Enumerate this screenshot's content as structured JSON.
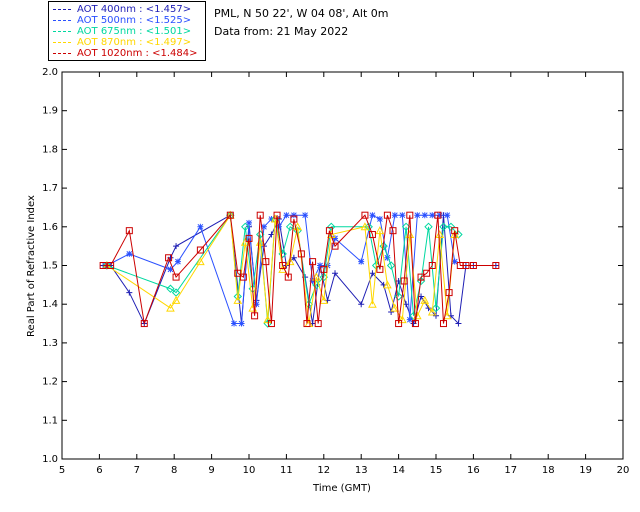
{
  "header": {
    "site": "PML, N 50 22', W 04 08', Alt 0m",
    "date": "Data from: 21 May 2022"
  },
  "legend": [
    {
      "label": "AOT  400nm : <1.457>",
      "color": "#1e1eb4"
    },
    {
      "label": "AOT  500nm : <1.525>",
      "color": "#2a50ff"
    },
    {
      "label": "AOT  675nm : <1.501>",
      "color": "#00d8a0"
    },
    {
      "label": "AOT  870nm : <1.497>",
      "color": "#ffd700"
    },
    {
      "label": "AOT 1020nm : <1.484>",
      "color": "#cc0000"
    }
  ],
  "chart_data": {
    "type": "line",
    "xlabel": "Time (GMT)",
    "ylabel": "Real Part of Refractive Index",
    "xlim": [
      5,
      20
    ],
    "ylim": [
      1.0,
      2.0
    ],
    "xticks": [
      "5",
      "6",
      "7",
      "8",
      "9",
      "10",
      "11",
      "12",
      "13",
      "14",
      "15",
      "16",
      "17",
      "18",
      "19",
      "20"
    ],
    "yticks": [
      "1.0",
      "1.1",
      "1.2",
      "1.3",
      "1.4",
      "1.5",
      "1.6",
      "1.7",
      "1.8",
      "1.9",
      "2.0"
    ],
    "series": [
      {
        "name": "AOT  400nm",
        "marker": "plus",
        "color": "#1e1eb4",
        "x": [
          6.1,
          6.3,
          6.8,
          7.2,
          7.9,
          8.05,
          9.5,
          9.8,
          10.0,
          10.2,
          10.4,
          10.6,
          10.8,
          11.0,
          11.2,
          11.5,
          11.7,
          11.9,
          12.1,
          12.3,
          13.0,
          13.3,
          13.6,
          13.8,
          14.0,
          14.2,
          14.4,
          14.6,
          14.8,
          15.0,
          15.2,
          15.4,
          15.6,
          15.8,
          16.0,
          16.6
        ],
        "y": [
          1.5,
          1.5,
          1.43,
          1.35,
          1.52,
          1.55,
          1.63,
          1.35,
          1.6,
          1.41,
          1.55,
          1.58,
          1.62,
          1.5,
          1.52,
          1.47,
          1.35,
          1.5,
          1.41,
          1.48,
          1.4,
          1.48,
          1.45,
          1.38,
          1.46,
          1.4,
          1.35,
          1.42,
          1.39,
          1.37,
          1.63,
          1.37,
          1.35,
          1.5,
          1.5,
          1.5
        ]
      },
      {
        "name": "AOT  500nm",
        "marker": "star",
        "color": "#2a50ff",
        "x": [
          6.2,
          6.8,
          7.9,
          8.1,
          8.7,
          9.6,
          9.8,
          10.0,
          10.2,
          10.4,
          10.6,
          10.8,
          11.0,
          11.2,
          11.5,
          11.7,
          11.9,
          12.1,
          12.3,
          13.0,
          13.3,
          13.5,
          13.7,
          13.9,
          14.1,
          14.3,
          14.5,
          14.7,
          14.9,
          15.1,
          15.3,
          15.5
        ],
        "y": [
          1.5,
          1.53,
          1.49,
          1.51,
          1.6,
          1.35,
          1.35,
          1.61,
          1.4,
          1.6,
          1.62,
          1.6,
          1.63,
          1.63,
          1.63,
          1.46,
          1.5,
          1.5,
          1.57,
          1.51,
          1.63,
          1.62,
          1.52,
          1.63,
          1.63,
          1.36,
          1.63,
          1.63,
          1.63,
          1.63,
          1.63,
          1.51
        ]
      },
      {
        "name": "AOT  675nm",
        "marker": "diamond",
        "color": "#00d8a0",
        "x": [
          6.2,
          7.9,
          8.05,
          9.5,
          9.7,
          9.9,
          10.1,
          10.3,
          10.5,
          10.7,
          10.9,
          11.1,
          11.3,
          11.6,
          11.8,
          12.0,
          12.2,
          13.2,
          13.4,
          13.6,
          13.8,
          14.0,
          14.2,
          14.4,
          14.6,
          14.8,
          15.0,
          15.2,
          15.4,
          15.6
        ],
        "y": [
          1.5,
          1.44,
          1.43,
          1.63,
          1.42,
          1.6,
          1.44,
          1.58,
          1.35,
          1.62,
          1.53,
          1.6,
          1.59,
          1.4,
          1.45,
          1.47,
          1.6,
          1.6,
          1.5,
          1.55,
          1.5,
          1.42,
          1.6,
          1.37,
          1.46,
          1.6,
          1.39,
          1.6,
          1.6,
          1.58
        ]
      },
      {
        "name": "AOT  870nm",
        "marker": "triangle",
        "color": "#ffd700",
        "x": [
          6.2,
          7.9,
          8.05,
          8.7,
          9.5,
          9.7,
          9.9,
          10.1,
          10.3,
          10.5,
          10.7,
          10.9,
          11.1,
          11.3,
          11.6,
          11.8,
          12.0,
          12.2,
          13.1,
          13.3,
          13.5,
          13.7,
          13.9,
          14.1,
          14.3,
          14.5,
          14.7,
          14.9,
          15.1,
          15.3,
          15.5
        ],
        "y": [
          1.5,
          1.39,
          1.41,
          1.51,
          1.63,
          1.41,
          1.56,
          1.39,
          1.56,
          1.36,
          1.62,
          1.49,
          1.51,
          1.6,
          1.35,
          1.47,
          1.41,
          1.58,
          1.6,
          1.4,
          1.59,
          1.45,
          1.39,
          1.36,
          1.58,
          1.37,
          1.41,
          1.38,
          1.58,
          1.37,
          1.58
        ]
      },
      {
        "name": "AOT 1020nm",
        "marker": "square",
        "color": "#cc0000",
        "x": [
          6.1,
          6.3,
          6.8,
          7.2,
          7.85,
          8.05,
          8.7,
          9.5,
          9.7,
          9.85,
          10.0,
          10.15,
          10.3,
          10.45,
          10.6,
          10.75,
          10.9,
          11.05,
          11.2,
          11.4,
          11.55,
          11.7,
          11.85,
          12.0,
          12.15,
          12.3,
          13.1,
          13.3,
          13.5,
          13.7,
          13.85,
          14.0,
          14.15,
          14.3,
          14.45,
          14.6,
          14.75,
          14.9,
          15.05,
          15.2,
          15.35,
          15.5,
          15.65,
          15.8,
          16.0,
          16.6
        ],
        "y": [
          1.5,
          1.5,
          1.59,
          1.35,
          1.52,
          1.47,
          1.54,
          1.63,
          1.48,
          1.47,
          1.57,
          1.37,
          1.63,
          1.51,
          1.35,
          1.63,
          1.5,
          1.47,
          1.62,
          1.53,
          1.35,
          1.51,
          1.35,
          1.49,
          1.59,
          1.55,
          1.63,
          1.58,
          1.49,
          1.63,
          1.59,
          1.35,
          1.46,
          1.63,
          1.35,
          1.47,
          1.48,
          1.5,
          1.63,
          1.35,
          1.43,
          1.59,
          1.5,
          1.5,
          1.5,
          1.5
        ]
      }
    ]
  }
}
